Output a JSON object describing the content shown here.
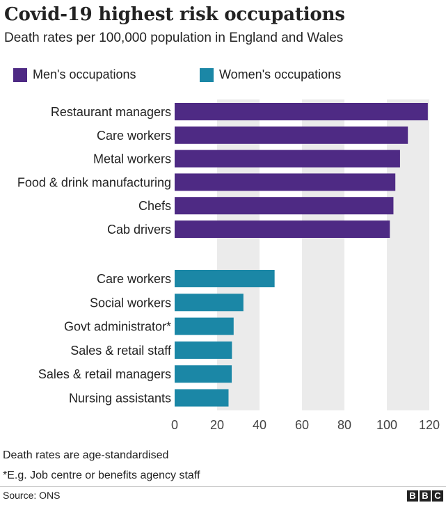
{
  "header": {
    "title": "Covid-19 highest risk occupations",
    "subtitle": "Death rates per 100,000 population in England and Wales"
  },
  "colors": {
    "men": "#4e2a84",
    "women": "#1b87a6",
    "band": "#ebebeb",
    "text": "#222222"
  },
  "chart_data": {
    "type": "bar",
    "orientation": "horizontal",
    "title": "Covid-19 highest risk occupations",
    "subtitle": "Death rates per 100,000 population in England and Wales",
    "xlabel": "",
    "ylabel": "",
    "xlim": [
      0,
      120
    ],
    "xticks": [
      "0",
      "20",
      "40",
      "60",
      "80",
      "100",
      "120"
    ],
    "grid": "alternating vertical bands",
    "legend": "top-left",
    "series": [
      {
        "name": "Men's occupations",
        "color": "#4e2a84",
        "categories": [
          "Restaurant managers",
          "Care workers",
          "Metal workers",
          "Food & drink manufacturing",
          "Chefs",
          "Cab drivers"
        ],
        "values": [
          119.3,
          109.9,
          106.2,
          104.0,
          103.1,
          101.4
        ]
      },
      {
        "name": "Women's occupations",
        "color": "#1b87a6",
        "categories": [
          "Care workers",
          "Social workers",
          "Govt administrator*",
          "Sales & retail staff",
          "Sales & retail managers",
          "Nursing assistants"
        ],
        "values": [
          47.1,
          32.4,
          27.8,
          27.0,
          26.9,
          25.4
        ]
      }
    ]
  },
  "notes": {
    "note1": "Death rates are age-standardised",
    "note2": "*E.g. Job centre or benefits agency staff"
  },
  "footer": {
    "source": "Source: ONS",
    "logo_letters": [
      "B",
      "B",
      "C"
    ]
  }
}
